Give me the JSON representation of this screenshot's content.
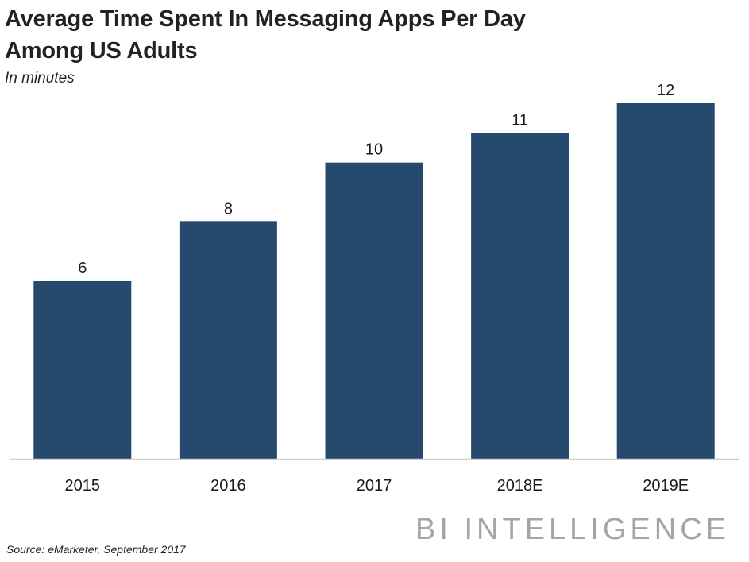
{
  "title_lines": [
    "Average Time Spent In Messaging Apps Per Day",
    "Among US Adults"
  ],
  "subtitle": "In minutes",
  "brand": "BI INTELLIGENCE",
  "source": "Source: eMarketer, September 2017",
  "colors": {
    "bar": "#264a6e",
    "axis": "#d0d0d0",
    "brand": "#a5a5a5"
  },
  "chart_data": {
    "type": "bar",
    "title": "Average Time Spent In Messaging Apps Per Day Among US Adults",
    "subtitle": "In minutes",
    "categories": [
      "2015",
      "2016",
      "2017",
      "2018E",
      "2019E"
    ],
    "values": [
      6,
      8,
      10,
      11,
      12
    ],
    "data_labels": [
      "6",
      "8",
      "10",
      "11",
      "12"
    ],
    "xlabel": "",
    "ylabel": "",
    "ylim": [
      0,
      12
    ],
    "grid": false,
    "legend": "none"
  }
}
